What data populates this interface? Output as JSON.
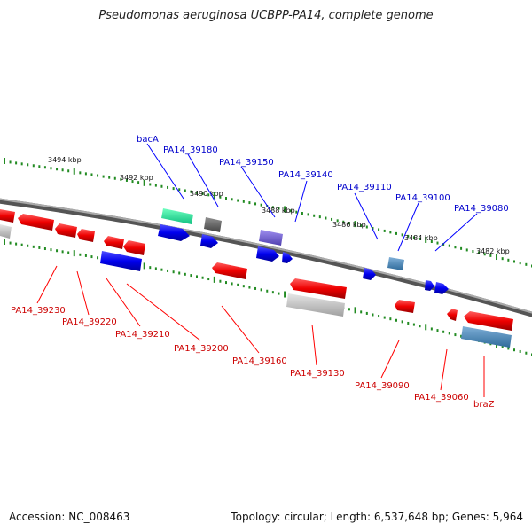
{
  "title": "Pseudomonas aeruginosa UCBPP-PA14, complete genome",
  "footer": {
    "accession": "Accession: NC_008463",
    "topology": "Topology: circular; Length: 6,537,648 bp; Genes: 5,964"
  },
  "colors": {
    "forward": "#0000ff",
    "reverse": "#ff0000",
    "backbone": "#808080",
    "ticks": "#228b22"
  },
  "kbp_ticks": [
    "3494 kbp",
    "3492 kbp",
    "3490 kbp",
    "3488 kbp",
    "3486 kbp",
    "3484 kbp",
    "3482 kbp"
  ],
  "forward_labels": [
    "bacA",
    "PA14_39180",
    "PA14_39150",
    "PA14_39140",
    "PA14_39110",
    "PA14_39100",
    "PA14_39080"
  ],
  "reverse_labels": [
    "PA14_39230",
    "PA14_39220",
    "PA14_39210",
    "PA14_39200",
    "PA14_39160",
    "PA14_39130",
    "PA14_39090",
    "PA14_39060",
    "braZ"
  ]
}
